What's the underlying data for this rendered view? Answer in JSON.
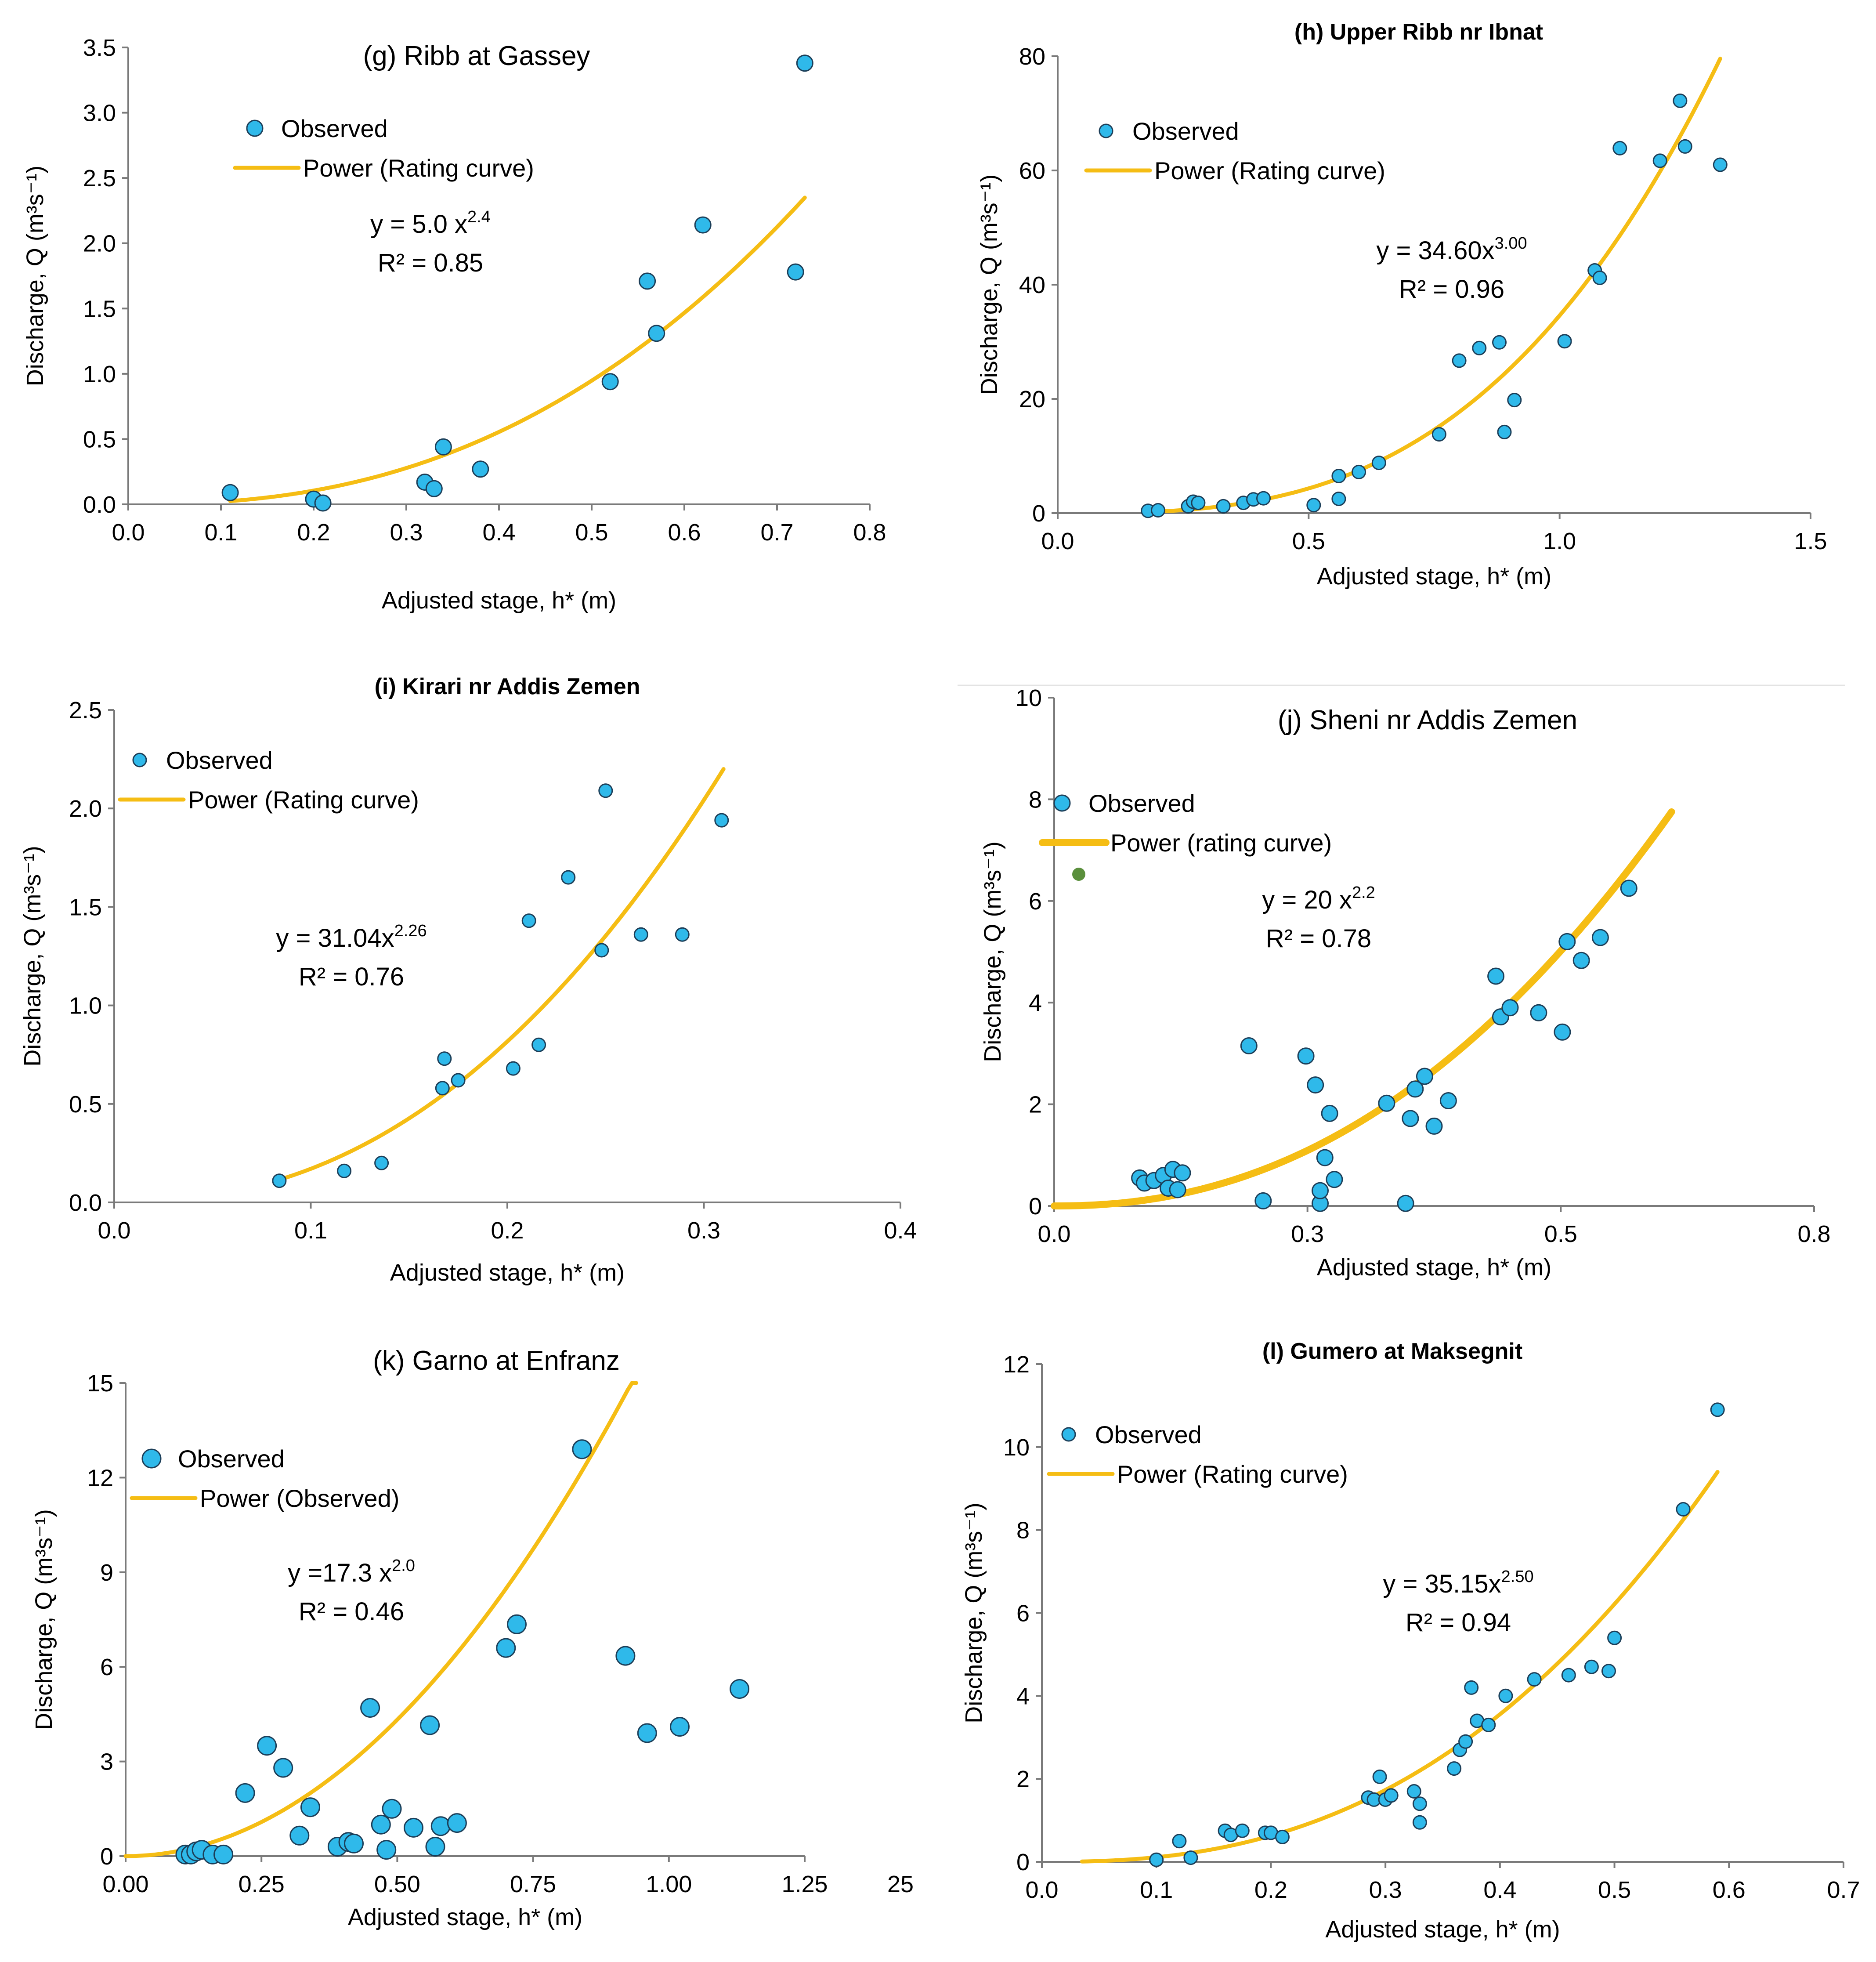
{
  "colors": {
    "observed": "#2fb9ea",
    "observed_edge": "#1c3e58",
    "curve": "#f5bd14",
    "axis": "#7a7a7a",
    "stray_dot": "#5a8f3c"
  },
  "chart_data": [
    {
      "id": "g",
      "type": "scatter",
      "title": "(g) Ribb at Gassey",
      "xlabel": "Adjusted stage, h* (m)",
      "ylabel": "Discharge, Q (m³s⁻¹)",
      "xlim": [
        0,
        0.8
      ],
      "ylim": [
        0,
        3.5
      ],
      "xticks": [
        "0.0",
        "0.1",
        "0.2",
        "0.3",
        "0.4",
        "0.5",
        "0.6",
        "0.7",
        "0.8"
      ],
      "yticks": [
        "0.0",
        "0.5",
        "1.0",
        "1.5",
        "2.0",
        "2.5",
        "3.0",
        "3.5"
      ],
      "legend": {
        "observed": "Observed",
        "curve": "Power (Rating curve)"
      },
      "equation": {
        "prefix": "y = 5.0 x",
        "exponent": "2.4",
        "r2": "R² = 0.85"
      },
      "fit": {
        "a": 5.0,
        "b": 2.4,
        "x_range": [
          0.11,
          0.73
        ]
      },
      "points": [
        [
          0.11,
          0.09
        ],
        [
          0.2,
          0.04
        ],
        [
          0.21,
          0.01
        ],
        [
          0.32,
          0.17
        ],
        [
          0.33,
          0.12
        ],
        [
          0.34,
          0.44
        ],
        [
          0.38,
          0.27
        ],
        [
          0.52,
          0.94
        ],
        [
          0.56,
          1.71
        ],
        [
          0.57,
          1.31
        ],
        [
          0.62,
          2.14
        ],
        [
          0.72,
          1.78
        ],
        [
          0.73,
          3.38
        ]
      ]
    },
    {
      "id": "h",
      "type": "scatter",
      "title": "(h) Upper Ribb nr Ibnat",
      "xlabel": "Adjusted stage, h* (m)",
      "ylabel": "Discharge, Q (m³s⁻¹)",
      "xlim": [
        0,
        1.5
      ],
      "ylim": [
        0,
        80
      ],
      "xticks": [
        "0.0",
        "0.5",
        "1.0",
        "1.5"
      ],
      "yticks": [
        "0",
        "20",
        "40",
        "60",
        "80"
      ],
      "legend": {
        "observed": "Observed",
        "curve": "Power (Rating curve)"
      },
      "equation": {
        "prefix": "y = 34.60x",
        "exponent": "3.00",
        "r2": "R² = 0.96"
      },
      "fit": {
        "a": 34.6,
        "b": 3.0,
        "x_range": [
          0.19,
          1.32
        ]
      },
      "points": [
        [
          0.18,
          0.4
        ],
        [
          0.2,
          0.5
        ],
        [
          0.26,
          1.2
        ],
        [
          0.27,
          2.0
        ],
        [
          0.28,
          1.8
        ],
        [
          0.33,
          1.2
        ],
        [
          0.37,
          1.8
        ],
        [
          0.39,
          2.4
        ],
        [
          0.41,
          2.6
        ],
        [
          0.51,
          1.4
        ],
        [
          0.56,
          2.5
        ],
        [
          0.56,
          6.5
        ],
        [
          0.6,
          7.2
        ],
        [
          0.64,
          8.8
        ],
        [
          0.76,
          13.8
        ],
        [
          0.8,
          26.7
        ],
        [
          0.84,
          28.9
        ],
        [
          0.88,
          29.9
        ],
        [
          0.89,
          14.2
        ],
        [
          0.91,
          19.8
        ],
        [
          1.01,
          30.1
        ],
        [
          1.07,
          42.5
        ],
        [
          1.08,
          41.2
        ],
        [
          1.12,
          63.9
        ],
        [
          1.2,
          61.7
        ],
        [
          1.24,
          72.2
        ],
        [
          1.25,
          64.2
        ],
        [
          1.32,
          61.0
        ]
      ]
    },
    {
      "id": "i",
      "type": "scatter",
      "title": "(i) Kirari nr Addis Zemen",
      "xlabel": "Adjusted stage, h* (m)",
      "ylabel": "Discharge, Q (m³s⁻¹)",
      "xlim": [
        0,
        0.4
      ],
      "ylim": [
        0,
        2.5
      ],
      "xticks": [
        "0.0",
        "0.1",
        "0.2",
        "0.3",
        "0.4"
      ],
      "yticks": [
        "0.0",
        "0.5",
        "1.0",
        "1.5",
        "2.0",
        "2.5"
      ],
      "legend": {
        "observed": "Observed",
        "curve": "Power (Rating curve)"
      },
      "equation": {
        "prefix": "y = 31.04x",
        "exponent": "2.26",
        "r2": "R² = 0.76"
      },
      "fit": {
        "a": 31.04,
        "b": 2.26,
        "x_range": [
          0.084,
          0.31
        ]
      },
      "points": [
        [
          0.084,
          0.11
        ],
        [
          0.117,
          0.16
        ],
        [
          0.136,
          0.2
        ],
        [
          0.167,
          0.58
        ],
        [
          0.168,
          0.73
        ],
        [
          0.175,
          0.62
        ],
        [
          0.203,
          0.68
        ],
        [
          0.211,
          1.43
        ],
        [
          0.216,
          0.8
        ],
        [
          0.231,
          1.65
        ],
        [
          0.248,
          1.28
        ],
        [
          0.25,
          2.09
        ],
        [
          0.268,
          1.36
        ],
        [
          0.289,
          1.36
        ],
        [
          0.309,
          1.94
        ]
      ]
    },
    {
      "id": "j",
      "type": "scatter",
      "title": "(j) Sheni nr Addis Zemen",
      "xlabel": "Adjusted stage, h* (m)",
      "ylabel": "Discharge, Q (m³s⁻¹)",
      "xlim": [
        0,
        0.8
      ],
      "ylim": [
        0,
        10
      ],
      "xticks": [
        "0.0",
        "0.3",
        "0.5",
        "0.8"
      ],
      "yticks": [
        "0",
        "2",
        "4",
        "6",
        "8",
        "10"
      ],
      "legend": {
        "observed": "Observed",
        "curve": "Power (rating curve)"
      },
      "equation": {
        "prefix": "y = 20 x",
        "exponent": "2.2",
        "r2": "R² = 0.78"
      },
      "fit": {
        "a": 20,
        "b": 2.2,
        "x_range": [
          0.0,
          0.65
        ]
      },
      "points": [
        [
          0.09,
          0.55
        ],
        [
          0.095,
          0.45
        ],
        [
          0.105,
          0.5
        ],
        [
          0.115,
          0.6
        ],
        [
          0.12,
          0.35
        ],
        [
          0.125,
          0.72
        ],
        [
          0.13,
          0.32
        ],
        [
          0.135,
          0.65
        ],
        [
          0.205,
          3.15
        ],
        [
          0.22,
          0.1
        ],
        [
          0.265,
          2.95
        ],
        [
          0.275,
          2.38
        ],
        [
          0.28,
          0.05
        ],
        [
          0.28,
          0.3
        ],
        [
          0.285,
          0.95
        ],
        [
          0.29,
          1.82
        ],
        [
          0.295,
          0.52
        ],
        [
          0.35,
          2.02
        ],
        [
          0.37,
          0.05
        ],
        [
          0.375,
          1.72
        ],
        [
          0.38,
          2.3
        ],
        [
          0.39,
          2.55
        ],
        [
          0.4,
          1.57
        ],
        [
          0.415,
          2.07
        ],
        [
          0.465,
          4.52
        ],
        [
          0.47,
          3.72
        ],
        [
          0.48,
          3.9
        ],
        [
          0.51,
          3.8
        ],
        [
          0.535,
          3.42
        ],
        [
          0.54,
          5.2
        ],
        [
          0.555,
          4.83
        ],
        [
          0.575,
          5.28
        ],
        [
          0.605,
          6.25
        ]
      ]
    },
    {
      "id": "k",
      "type": "scatter",
      "title": "(k) Garno at Enfranz",
      "xlabel": "Adjusted stage, h* (m)",
      "ylabel": "Discharge, Q (m³s⁻¹)",
      "xlim": [
        0,
        1.25
      ],
      "ylim": [
        0,
        15
      ],
      "xticks": [
        "0.00",
        "0.25",
        "0.50",
        "0.75",
        "1.00",
        "1.25"
      ],
      "yticks": [
        "0",
        "3",
        "6",
        "9",
        "12",
        "15"
      ],
      "legend": {
        "observed": "Observed",
        "curve": "Power (Observed)"
      },
      "equation": {
        "prefix": "y =17.3 x",
        "exponent": "2.0",
        "r2": "R² = 0.46"
      },
      "fit": {
        "a": 17.3,
        "b": 2.0,
        "x_range": [
          0.0,
          0.94
        ]
      },
      "points": [
        [
          0.11,
          0.05
        ],
        [
          0.12,
          0.05
        ],
        [
          0.13,
          0.15
        ],
        [
          0.14,
          0.2
        ],
        [
          0.16,
          0.05
        ],
        [
          0.18,
          0.05
        ],
        [
          0.22,
          2.0
        ],
        [
          0.26,
          3.5
        ],
        [
          0.29,
          2.8
        ],
        [
          0.32,
          0.65
        ],
        [
          0.34,
          1.55
        ],
        [
          0.39,
          0.3
        ],
        [
          0.41,
          0.45
        ],
        [
          0.42,
          0.4
        ],
        [
          0.45,
          4.7
        ],
        [
          0.47,
          1.0
        ],
        [
          0.48,
          0.2
        ],
        [
          0.49,
          1.5
        ],
        [
          0.53,
          0.9
        ],
        [
          0.56,
          4.15
        ],
        [
          0.57,
          0.3
        ],
        [
          0.58,
          0.95
        ],
        [
          0.61,
          1.05
        ],
        [
          0.7,
          6.6
        ],
        [
          0.72,
          7.35
        ],
        [
          0.84,
          12.9
        ],
        [
          0.92,
          6.35
        ],
        [
          0.96,
          3.9
        ],
        [
          1.02,
          4.1
        ],
        [
          1.13,
          5.3
        ]
      ],
      "stray_text": "25"
    },
    {
      "id": "l",
      "type": "scatter",
      "title": "(l) Gumero at Maksegnit",
      "xlabel": "Adjusted stage, h* (m)",
      "ylabel": "Discharge, Q (m³s⁻¹)",
      "xlim": [
        0,
        0.7
      ],
      "ylim": [
        0,
        12
      ],
      "xticks": [
        "0.0",
        "0.1",
        "0.2",
        "0.3",
        "0.4",
        "0.5",
        "0.6",
        "0.7"
      ],
      "yticks": [
        "0",
        "2",
        "4",
        "6",
        "8",
        "10",
        "12"
      ],
      "legend": {
        "observed": "Observed",
        "curve": "Power (Rating curve)"
      },
      "equation": {
        "prefix": "y = 35.15x",
        "exponent": "2.50",
        "r2": "R² = 0.94"
      },
      "fit": {
        "a": 35.15,
        "b": 2.5,
        "x_range": [
          0.035,
          0.59
        ]
      },
      "points": [
        [
          0.1,
          0.05
        ],
        [
          0.12,
          0.5
        ],
        [
          0.13,
          0.1
        ],
        [
          0.16,
          0.75
        ],
        [
          0.165,
          0.65
        ],
        [
          0.175,
          0.75
        ],
        [
          0.195,
          0.7
        ],
        [
          0.2,
          0.7
        ],
        [
          0.21,
          0.6
        ],
        [
          0.285,
          1.55
        ],
        [
          0.29,
          1.5
        ],
        [
          0.295,
          2.05
        ],
        [
          0.3,
          1.5
        ],
        [
          0.305,
          1.6
        ],
        [
          0.325,
          1.7
        ],
        [
          0.33,
          1.4
        ],
        [
          0.33,
          0.95
        ],
        [
          0.36,
          2.25
        ],
        [
          0.365,
          2.7
        ],
        [
          0.37,
          2.9
        ],
        [
          0.375,
          4.2
        ],
        [
          0.38,
          3.4
        ],
        [
          0.39,
          3.3
        ],
        [
          0.405,
          4.0
        ],
        [
          0.43,
          4.4
        ],
        [
          0.46,
          4.5
        ],
        [
          0.48,
          4.7
        ],
        [
          0.495,
          4.6
        ],
        [
          0.5,
          5.4
        ],
        [
          0.56,
          8.5
        ],
        [
          0.59,
          10.9
        ]
      ]
    }
  ]
}
